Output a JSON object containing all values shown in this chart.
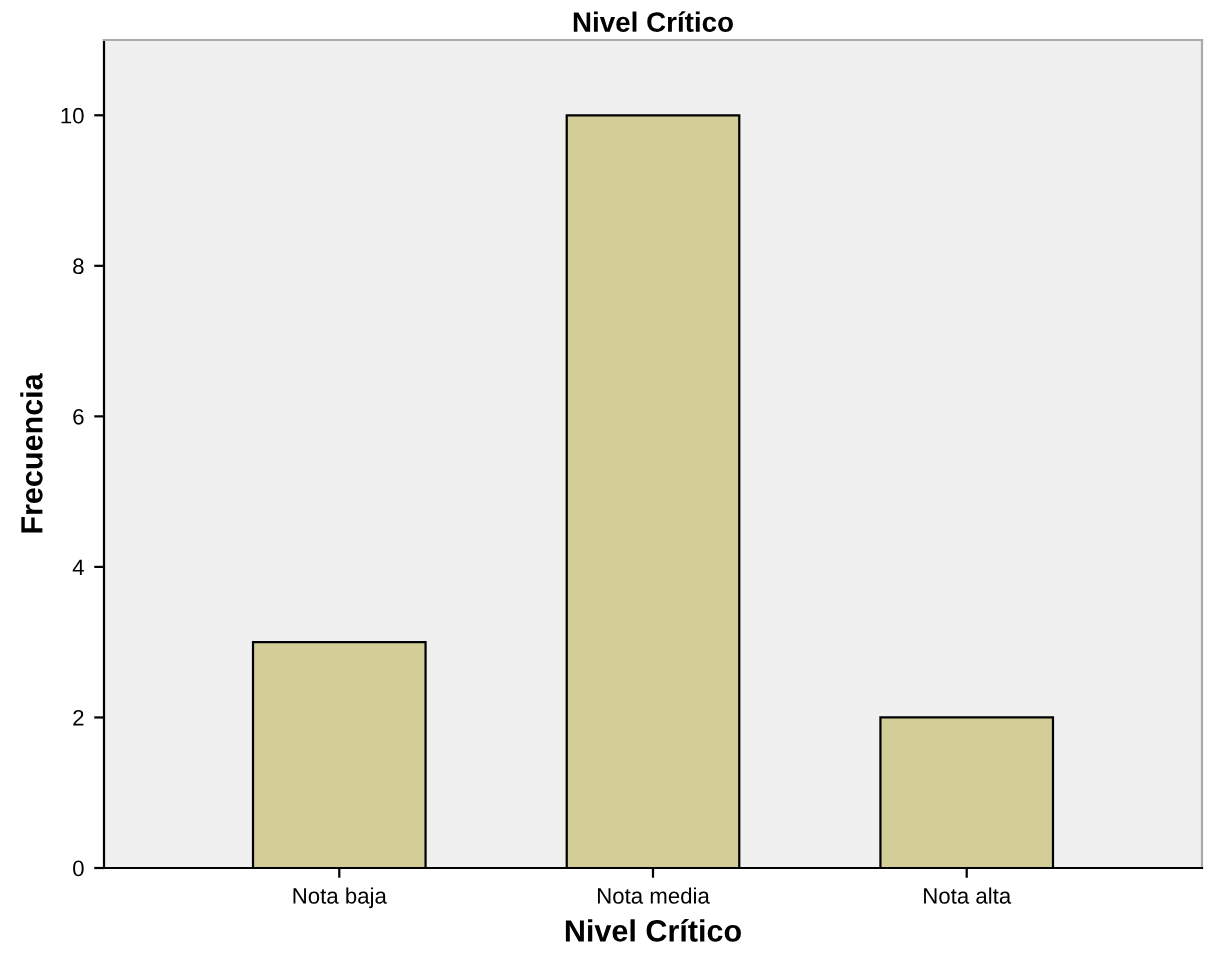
{
  "chart_data": {
    "type": "bar",
    "title": "Nivel Crítico",
    "xlabel": "Nivel Crítico",
    "ylabel": "Frecuencia",
    "categories": [
      "Nota baja",
      "Nota media",
      "Nota alta"
    ],
    "values": [
      3,
      10,
      2
    ],
    "color": "#d3ce97",
    "ylim": [
      0,
      11
    ],
    "yticks": [
      0,
      2,
      4,
      6,
      8,
      10
    ],
    "grid": false
  }
}
